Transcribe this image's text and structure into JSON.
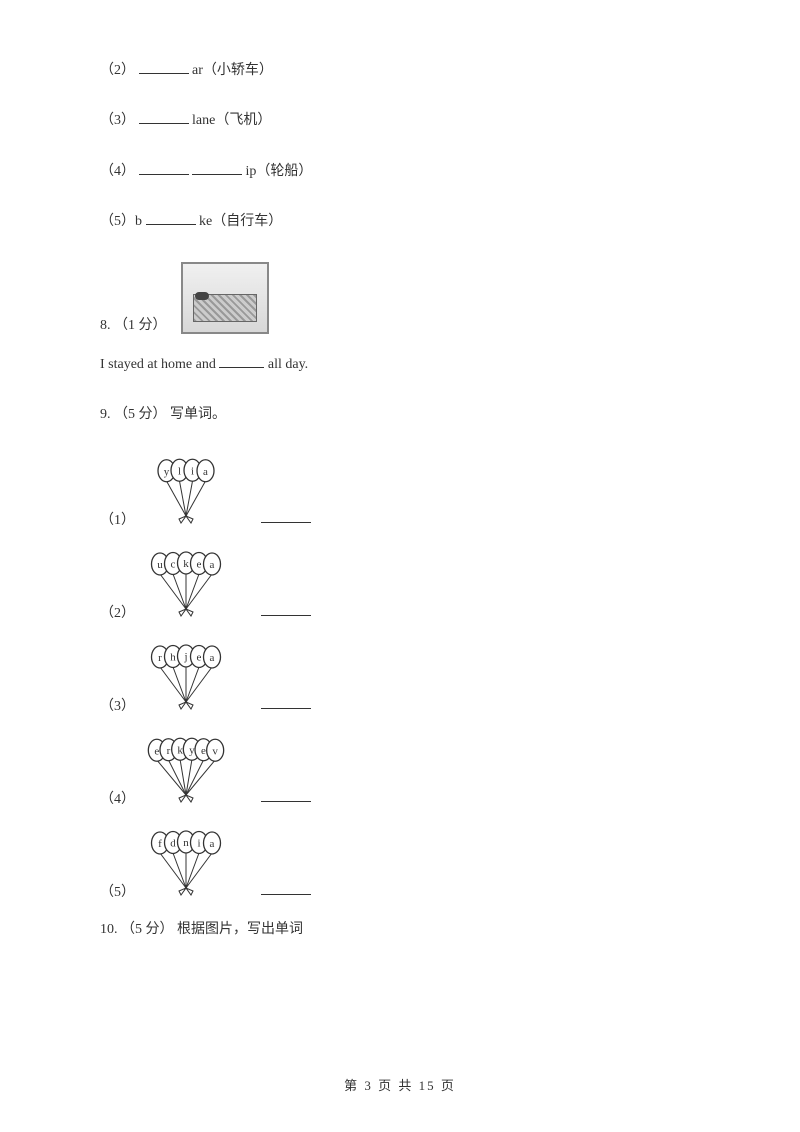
{
  "items": {
    "i2": "（2）",
    "i2_suffix": " ar（小轿车）",
    "i3": "（3）",
    "i3_suffix": "lane（飞机）",
    "i4": "（4）",
    "i4_suffix": "ip（轮船）",
    "i5": "（5）b",
    "i5_suffix": "ke（自行车）"
  },
  "q8": {
    "prefix": "8. （1 分）",
    "sentence_a": "I stayed at home and ",
    "sentence_b": "all day."
  },
  "q9": {
    "header": "9. （5 分）  写单词。",
    "subs": [
      "（1）",
      "（2）",
      "（3）",
      "（4）",
      "（5）"
    ]
  },
  "q10": {
    "header": "10. （5 分）  根据图片，写出单词"
  },
  "balloons": [
    {
      "letters": [
        "y",
        "l",
        "i",
        "a"
      ],
      "count": 4
    },
    {
      "letters": [
        "u",
        "c",
        "k",
        "e",
        "a"
      ],
      "count": 5
    },
    {
      "letters": [
        "r",
        "h",
        "j",
        "e",
        "a"
      ],
      "count": 5
    },
    {
      "letters": [
        "e",
        "r",
        "k",
        "y",
        "e",
        "v"
      ],
      "count": 6
    },
    {
      "letters": [
        "f",
        "d",
        "n",
        "i",
        "a"
      ],
      "count": 5
    }
  ],
  "footer": "第 3 页 共 15 页",
  "colors": {
    "text": "#333333",
    "line": "#333333",
    "balloon_stroke": "#333333",
    "balloon_fill": "#ffffff",
    "background": "#ffffff"
  }
}
